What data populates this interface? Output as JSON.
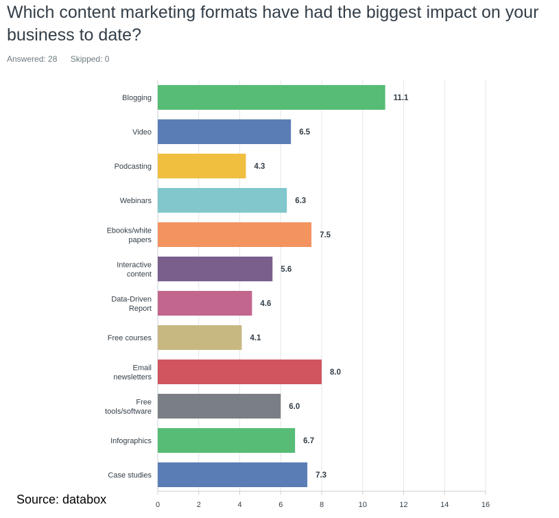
{
  "question": {
    "title": "Which content marketing formats have had the biggest impact on your business to date?",
    "answered": "Answered: 28",
    "skipped": "Skipped: 0"
  },
  "source_note": "Source: databox",
  "chart_data": {
    "type": "bar",
    "orientation": "horizontal",
    "categories": [
      "Blogging",
      "Video",
      "Podcasting",
      "Webinars",
      "Ebooks/white papers",
      "Interactive content",
      "Data-Driven Report",
      "Free courses",
      "Email newsletters",
      "Free tools/software",
      "Infographics",
      "Case studies"
    ],
    "category_lines": [
      [
        "Blogging"
      ],
      [
        "Video"
      ],
      [
        "Podcasting"
      ],
      [
        "Webinars"
      ],
      [
        "Ebooks/white",
        "papers"
      ],
      [
        "Interactive",
        "content"
      ],
      [
        "Data-Driven",
        "Report"
      ],
      [
        "Free courses"
      ],
      [
        "Email",
        "newsletters"
      ],
      [
        "Free",
        "tools/software"
      ],
      [
        "Infographics"
      ],
      [
        "Case studies"
      ]
    ],
    "values": [
      11.1,
      6.5,
      4.3,
      6.3,
      7.5,
      5.6,
      4.6,
      4.1,
      8.0,
      6.0,
      6.7,
      7.3
    ],
    "value_labels": [
      "11.1",
      "6.5",
      "4.3",
      "6.3",
      "7.5",
      "5.6",
      "4.6",
      "4.1",
      "8.0",
      "6.0",
      "6.7",
      "7.3"
    ],
    "colors": [
      "#56bc76",
      "#5a7db5",
      "#f0bf40",
      "#81c7cc",
      "#f29360",
      "#7a5f8d",
      "#c2668d",
      "#c7b882",
      "#d0555e",
      "#7a7f86",
      "#56bc76",
      "#5a7db5"
    ],
    "xlim": [
      0,
      16
    ],
    "xticks": [
      0,
      2,
      4,
      6,
      8,
      10,
      12,
      14,
      16
    ],
    "grid": true
  }
}
